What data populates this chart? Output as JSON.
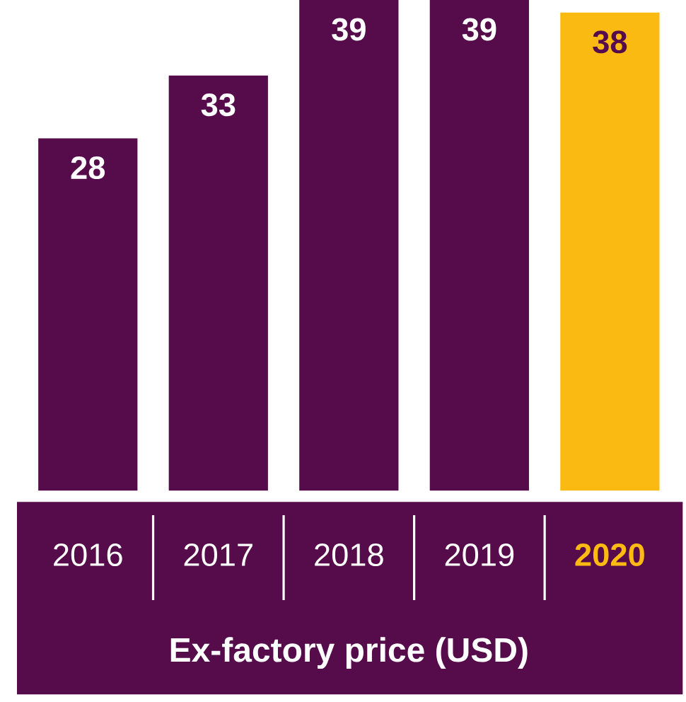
{
  "chart_data": {
    "type": "bar",
    "xlabel": "Ex-factory price (USD)",
    "categories": [
      "2016",
      "2017",
      "2018",
      "2019",
      "2020"
    ],
    "values": [
      28,
      33,
      39,
      39,
      38
    ],
    "colors": [
      "#560b4b",
      "#560b4b",
      "#560b4b",
      "#560b4b",
      "#fbba12"
    ],
    "data_labels": true
  }
}
